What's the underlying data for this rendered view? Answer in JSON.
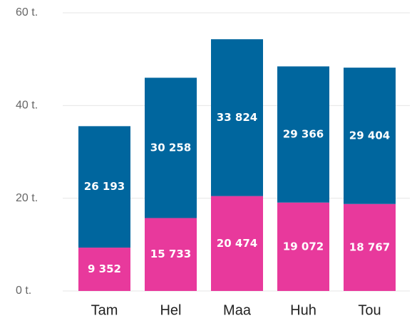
{
  "chart_data": {
    "type": "stacked_bar",
    "categories": [
      "Tam",
      "Hel",
      "Maa",
      "Huh",
      "Tou"
    ],
    "series": [
      {
        "color": "#e8399c",
        "values": [
          9352,
          15733,
          20474,
          19072,
          18767
        ],
        "value_labels": [
          "9 352",
          "15 733",
          "20 474",
          "19 072",
          "18 767"
        ]
      },
      {
        "color": "#00669e",
        "values": [
          26193,
          30258,
          33824,
          29366,
          29404
        ],
        "value_labels": [
          "26 193",
          "30 258",
          "33 824",
          "29 366",
          "29 404"
        ]
      }
    ],
    "ylim": [
      0,
      60000
    ],
    "yticks": [
      {
        "value": 0,
        "label": "0 t."
      },
      {
        "value": 20000,
        "label": "20 t."
      },
      {
        "value": 40000,
        "label": "40 t."
      },
      {
        "value": 60000,
        "label": "60 t."
      }
    ],
    "grid": true
  }
}
